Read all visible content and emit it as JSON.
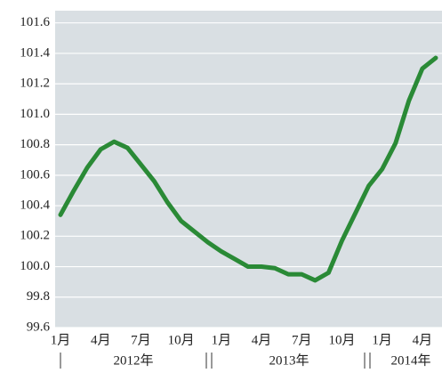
{
  "chart_data": {
    "type": "line",
    "categories": [
      "1月",
      null,
      null,
      "4月",
      null,
      null,
      "7月",
      null,
      null,
      "10月",
      null,
      null,
      "1月",
      null,
      null,
      "4月",
      null,
      null,
      "7月",
      null,
      null,
      "10月",
      null,
      null,
      "1月",
      null,
      null,
      "4月",
      null
    ],
    "year_labels": [
      "2012年",
      "2013年",
      "2014年"
    ],
    "series": [
      {
        "color": "#2a8a36",
        "values": [
          100.34,
          100.5,
          100.65,
          100.77,
          100.82,
          100.78,
          100.67,
          100.56,
          100.42,
          100.3,
          100.23,
          100.16,
          100.1,
          100.05,
          100.0,
          100.0,
          99.99,
          99.95,
          99.95,
          99.91,
          99.96,
          100.17,
          100.35,
          100.53,
          100.64,
          100.81,
          101.09,
          101.3,
          101.37
        ]
      }
    ],
    "ylim": [
      99.6,
      101.68
    ],
    "yticks": [
      99.6,
      99.8,
      {
        "value": 100,
        "label": "100.0"
      },
      100.2,
      100.4,
      100.6,
      100.8,
      {
        "value": 101,
        "label": "101.0"
      },
      101.2,
      101.4,
      101.6
    ],
    "grid": true
  }
}
